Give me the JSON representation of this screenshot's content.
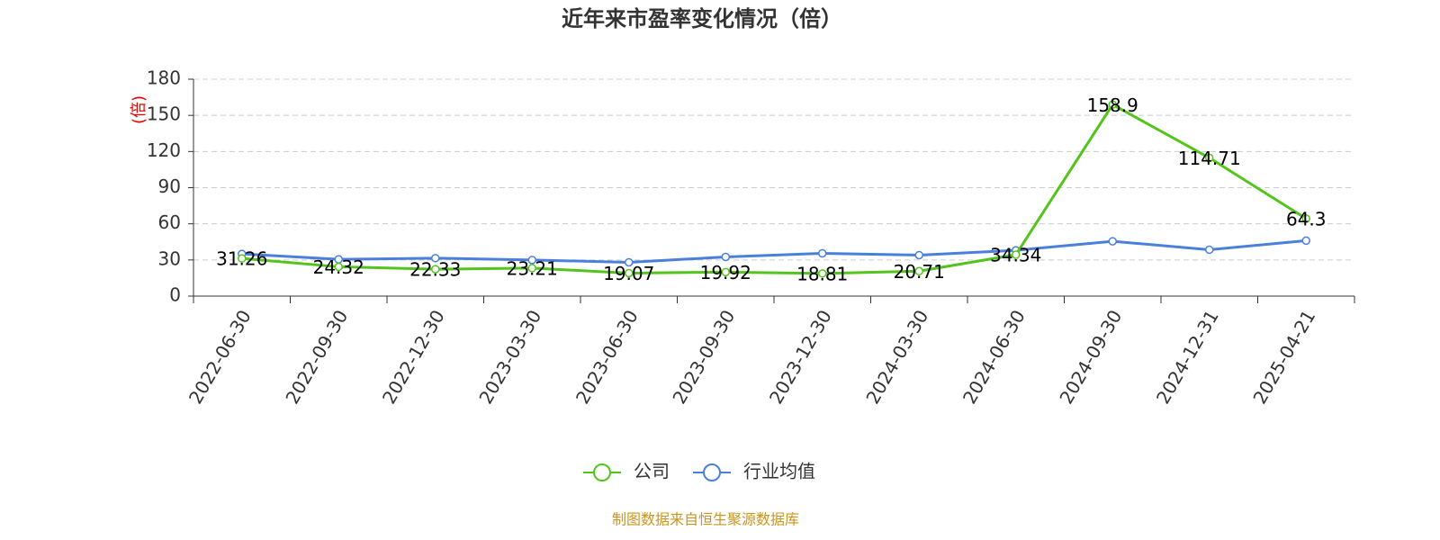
{
  "chart_data": {
    "type": "line",
    "title": "近年来市盈率变化情况（倍）",
    "y_label": "(倍)",
    "categories": [
      "2022-06-30",
      "2022-09-30",
      "2022-12-30",
      "2023-03-30",
      "2023-06-30",
      "2023-09-30",
      "2023-12-30",
      "2024-03-30",
      "2024-06-30",
      "2024-09-30",
      "2024-12-31",
      "2025-04-21"
    ],
    "series": [
      {
        "name": "公司",
        "color": "#52c41a",
        "values": [
          31.26,
          24.32,
          22.33,
          23.21,
          19.07,
          19.92,
          18.81,
          20.71,
          34.34,
          158.9,
          114.71,
          64.3
        ]
      },
      {
        "name": "行业均值",
        "color": "#4a7fdc",
        "values": [
          35,
          30.5,
          31.5,
          30,
          28,
          32.5,
          35.5,
          34,
          38,
          45.5,
          38.5,
          46
        ]
      }
    ],
    "ylim": [
      0,
      180
    ],
    "yticks": [
      0,
      30,
      60,
      90,
      120,
      150,
      180
    ],
    "grid": true,
    "source": "制图数据来自恒生聚源数据库"
  }
}
